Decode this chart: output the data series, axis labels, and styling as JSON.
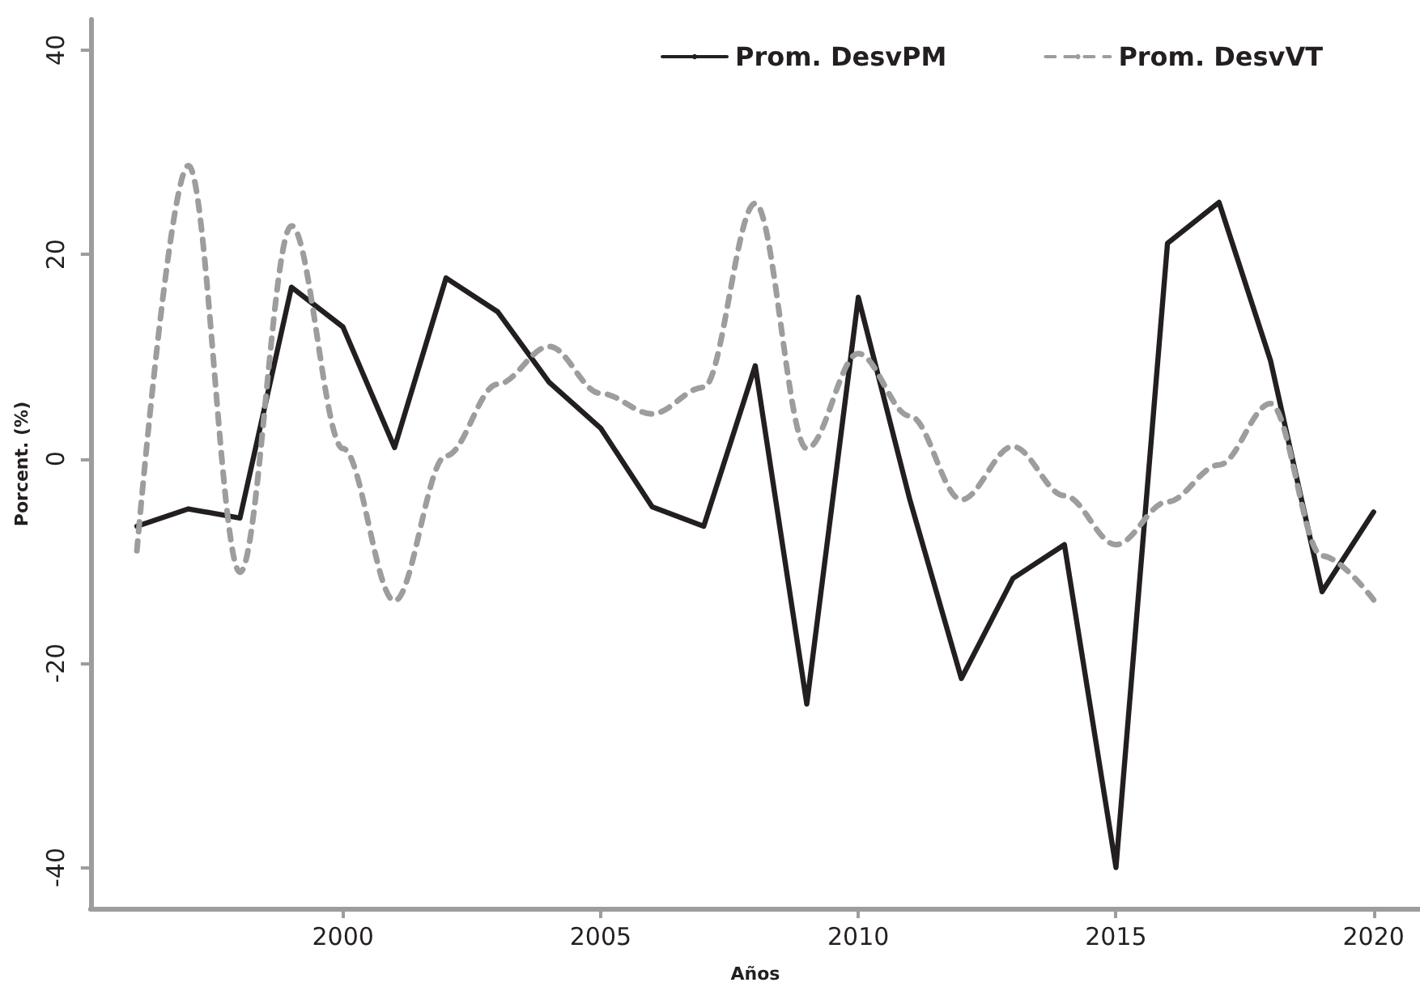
{
  "chart_data": {
    "type": "line",
    "xlabel": "Años",
    "ylabel": "Porcent. (%)",
    "x": [
      1996,
      1997,
      1998,
      1999,
      2000,
      2001,
      2002,
      2003,
      2004,
      2005,
      2006,
      2007,
      2008,
      2009,
      2010,
      2011,
      2012,
      2013,
      2014,
      2015,
      2016,
      2017,
      2018,
      2019,
      2020
    ],
    "series": [
      {
        "name": "Prom. DesvPM",
        "color": "#231f20",
        "line_style": "solid",
        "values": [
          -6.6,
          -4.9,
          -5.8,
          16.8,
          12.9,
          1.1,
          17.7,
          14.4,
          7.5,
          3,
          -4.7,
          -6.6,
          9.1,
          -24,
          15.8,
          -4,
          -21.5,
          -11.7,
          -8.4,
          -40,
          21.1,
          25.1,
          9.6,
          -13,
          -5.2
        ]
      },
      {
        "name": "Prom. DesvVT",
        "color": "#9d9d9f",
        "line_style": "dashed",
        "values": [
          -9,
          28.7,
          -11.1,
          22.8,
          1,
          -13.9,
          0.3,
          7.3,
          11,
          6.4,
          4.4,
          7,
          25,
          1,
          10.3,
          4.2,
          -4,
          1.2,
          -3.6,
          -8.4,
          -4.2,
          -0.6,
          5.4,
          -9.5,
          -13.8
        ]
      }
    ],
    "xlim": [
      1995.1,
      2020.9
    ],
    "ylim": [
      -44,
      43
    ],
    "xticks": [
      2000,
      2005,
      2010,
      2015,
      2020
    ],
    "yticks": [
      -40,
      -20,
      0,
      20,
      40
    ],
    "grid": false,
    "legend": "top right",
    "marker": "none"
  }
}
